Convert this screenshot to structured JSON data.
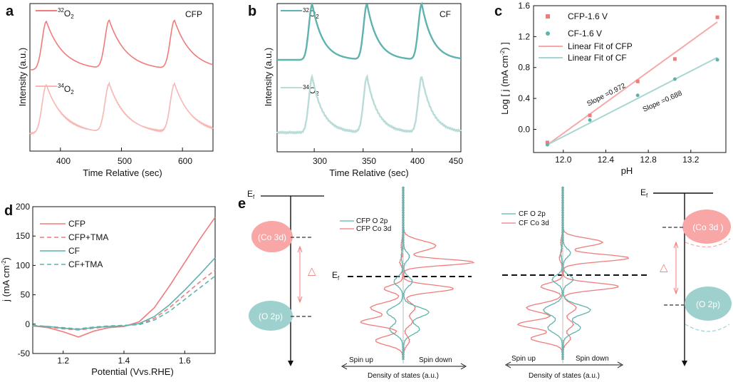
{
  "colors": {
    "cfp": "#f07b7b",
    "cfp_light": "#f7b7b4",
    "cf": "#5fb3ae",
    "cf_light": "#b9dcd8",
    "cfp_fill": "#f8a6a6",
    "cf_fill": "#9ed1cd"
  },
  "panels": {
    "a": {
      "label": "a",
      "ylabel": "Intensity (a.u.)",
      "xlabel": "Time Relative (sec)",
      "tag": "CFP",
      "xticks": [
        "400",
        "500",
        "600"
      ],
      "legend": {
        "o32": {
          "sup": "32",
          "base": "O",
          "sub": "2"
        },
        "o34": {
          "sup": "34",
          "base": "O",
          "sub": "2"
        }
      }
    },
    "b": {
      "label": "b",
      "ylabel": "Intensity (a.u.)",
      "xlabel": "Time Relative (sec)",
      "tag": "CF",
      "xticks": [
        "300",
        "350",
        "400",
        "450"
      ],
      "legend": {
        "o32": {
          "sup": "32",
          "base": "O",
          "sub": "2"
        },
        "o34": {
          "sup": "34",
          "base": "O",
          "sub": "2"
        }
      }
    },
    "c": {
      "label": "c",
      "ylabel_pre": "Log [ j (mA cm",
      "ylabel_sup": "-2",
      "ylabel_post": ") ]",
      "xlabel": "pH",
      "legend": [
        "CFP-1.6 V",
        "CF-1.6 V",
        "Linear Fit of CFP",
        "Linear Fit of CF"
      ],
      "slope_cfp": "Slope =0.972",
      "slope_cf": "Slope =0.688"
    },
    "d": {
      "label": "d",
      "ylabel_pre": "j (mA cm",
      "ylabel_sup": "-2",
      "ylabel_post": ")",
      "xlabel": "Potential (Vvs.RHE)",
      "legend": [
        "CFP",
        "CFP+TMA",
        "CF",
        "CF+TMA"
      ]
    },
    "e": {
      "label": "e",
      "ef_letter": "E",
      "ef_sub": "f",
      "co3d_left": "(Co 3d)",
      "o2p_left": "(O 2p)",
      "co3d_right": "(Co 3d )",
      "o2p_right": "(O 2p)",
      "delta": "△",
      "legend_cfp": [
        "CFP O 2p",
        "CFP Co 3d"
      ],
      "legend_cf": [
        "CF O 2p",
        "CF Co 3d"
      ],
      "spin_up": "Spin up",
      "spin_down": "Spin down",
      "dos_label": "Density of states (a.u.)"
    }
  },
  "chart_data": [
    {
      "id": "a",
      "type": "line",
      "title": "CFP",
      "xlabel": "Time Relative (sec)",
      "ylabel": "Intensity (a.u.)",
      "xlim": [
        350,
        650
      ],
      "xticks": [
        400,
        500,
        600
      ],
      "peaks": [
        377,
        480,
        587
      ],
      "series": [
        {
          "name": "32O2",
          "offset": 1.0
        },
        {
          "name": "34O2",
          "offset": 0.0
        }
      ]
    },
    {
      "id": "b",
      "type": "line",
      "title": "CF",
      "xlabel": "Time Relative (sec)",
      "ylabel": "Intensity (a.u.)",
      "xlim": [
        262,
        450
      ],
      "xticks": [
        300,
        350,
        400,
        450
      ],
      "peaks": [
        298,
        354,
        410
      ],
      "series": [
        {
          "name": "32O2",
          "offset": 1.0
        },
        {
          "name": "34O2",
          "offset": 0.0
        }
      ]
    },
    {
      "id": "c",
      "type": "scatter",
      "xlabel": "pH",
      "ylabel": "Log [ j (mA cm-2) ]",
      "xlim": [
        11.72,
        13.53
      ],
      "ylim": [
        -0.3,
        1.6
      ],
      "xticks": [
        12.0,
        12.4,
        12.8,
        13.2
      ],
      "yticks": [
        0.0,
        0.4,
        0.8,
        1.2,
        1.6
      ],
      "series": [
        {
          "name": "CFP-1.6 V",
          "x": [
            11.85,
            12.25,
            12.7,
            13.05,
            13.45
          ],
          "y": [
            -0.17,
            0.18,
            0.62,
            0.91,
            1.45
          ]
        },
        {
          "name": "CF-1.6 V",
          "x": [
            11.85,
            12.25,
            12.7,
            13.05,
            13.45
          ],
          "y": [
            -0.2,
            0.12,
            0.44,
            0.65,
            0.9
          ]
        }
      ],
      "fits": [
        {
          "name": "Linear Fit of CFP",
          "slope": 0.972,
          "x": [
            11.85,
            13.45
          ],
          "y": [
            -0.2,
            1.39
          ]
        },
        {
          "name": "Linear Fit of CF",
          "slope": 0.688,
          "x": [
            11.85,
            13.45
          ],
          "y": [
            -0.2,
            0.93
          ]
        }
      ]
    },
    {
      "id": "d",
      "type": "line",
      "xlabel": "Potential (Vvs.RHE)",
      "ylabel": "j (mA cm-2)",
      "xlim": [
        1.1,
        1.7
      ],
      "ylim": [
        -50,
        200
      ],
      "xticks": [
        1.2,
        1.4,
        1.6
      ],
      "yticks": [
        -50,
        0,
        50,
        100,
        150,
        200
      ],
      "series": [
        {
          "name": "CFP",
          "x": [
            1.1,
            1.15,
            1.2,
            1.25,
            1.3,
            1.35,
            1.4,
            1.45,
            1.5,
            1.55,
            1.6,
            1.65,
            1.7
          ],
          "y": [
            -3,
            -6,
            -13,
            -22,
            -12,
            -6,
            -4,
            4,
            28,
            65,
            105,
            145,
            182
          ]
        },
        {
          "name": "CFP+TMA",
          "x": [
            1.1,
            1.15,
            1.2,
            1.25,
            1.3,
            1.35,
            1.4,
            1.45,
            1.5,
            1.55,
            1.6,
            1.65,
            1.7
          ],
          "y": [
            -3,
            -5,
            -8,
            -10,
            -7,
            -4,
            -3,
            0,
            10,
            28,
            50,
            72,
            92
          ]
        },
        {
          "name": "CF",
          "x": [
            1.1,
            1.15,
            1.2,
            1.25,
            1.3,
            1.35,
            1.4,
            1.45,
            1.5,
            1.55,
            1.6,
            1.65,
            1.7
          ],
          "y": [
            -3,
            -4,
            -7,
            -9,
            -6,
            -4,
            -3,
            1,
            13,
            33,
            58,
            85,
            113
          ]
        },
        {
          "name": "CF+TMA",
          "x": [
            1.1,
            1.15,
            1.2,
            1.25,
            1.3,
            1.35,
            1.4,
            1.45,
            1.5,
            1.55,
            1.6,
            1.65,
            1.7
          ],
          "y": [
            -2,
            -4,
            -6,
            -8,
            -5,
            -3,
            -2,
            -1,
            7,
            22,
            42,
            62,
            82
          ]
        }
      ]
    }
  ]
}
